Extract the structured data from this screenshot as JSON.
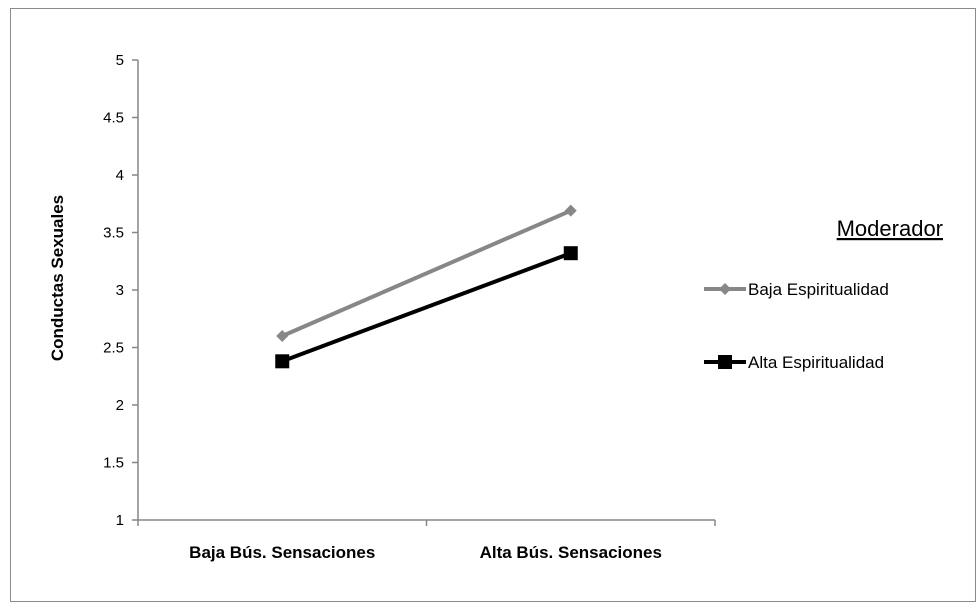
{
  "chart_data": {
    "type": "line",
    "categories": [
      "Baja Bús. Sensaciones",
      "Alta Bús. Sensaciones"
    ],
    "series": [
      {
        "name": "Baja Espiritualidad",
        "values": [
          2.6,
          3.69
        ],
        "color": "#878787",
        "marker": "diamond"
      },
      {
        "name": "Alta Espiritualidad",
        "values": [
          2.38,
          3.32
        ],
        "color": "#000000",
        "marker": "square"
      }
    ],
    "ylabel": "Conductas Sexuales",
    "xlabel": "",
    "ylim": [
      1,
      5
    ],
    "yticks": [
      "1",
      "1.5",
      "2",
      "2.5",
      "3",
      "3.5",
      "4",
      "4.5",
      "5"
    ],
    "grid": false,
    "legend_title": "Moderador",
    "legend_position": "right"
  }
}
